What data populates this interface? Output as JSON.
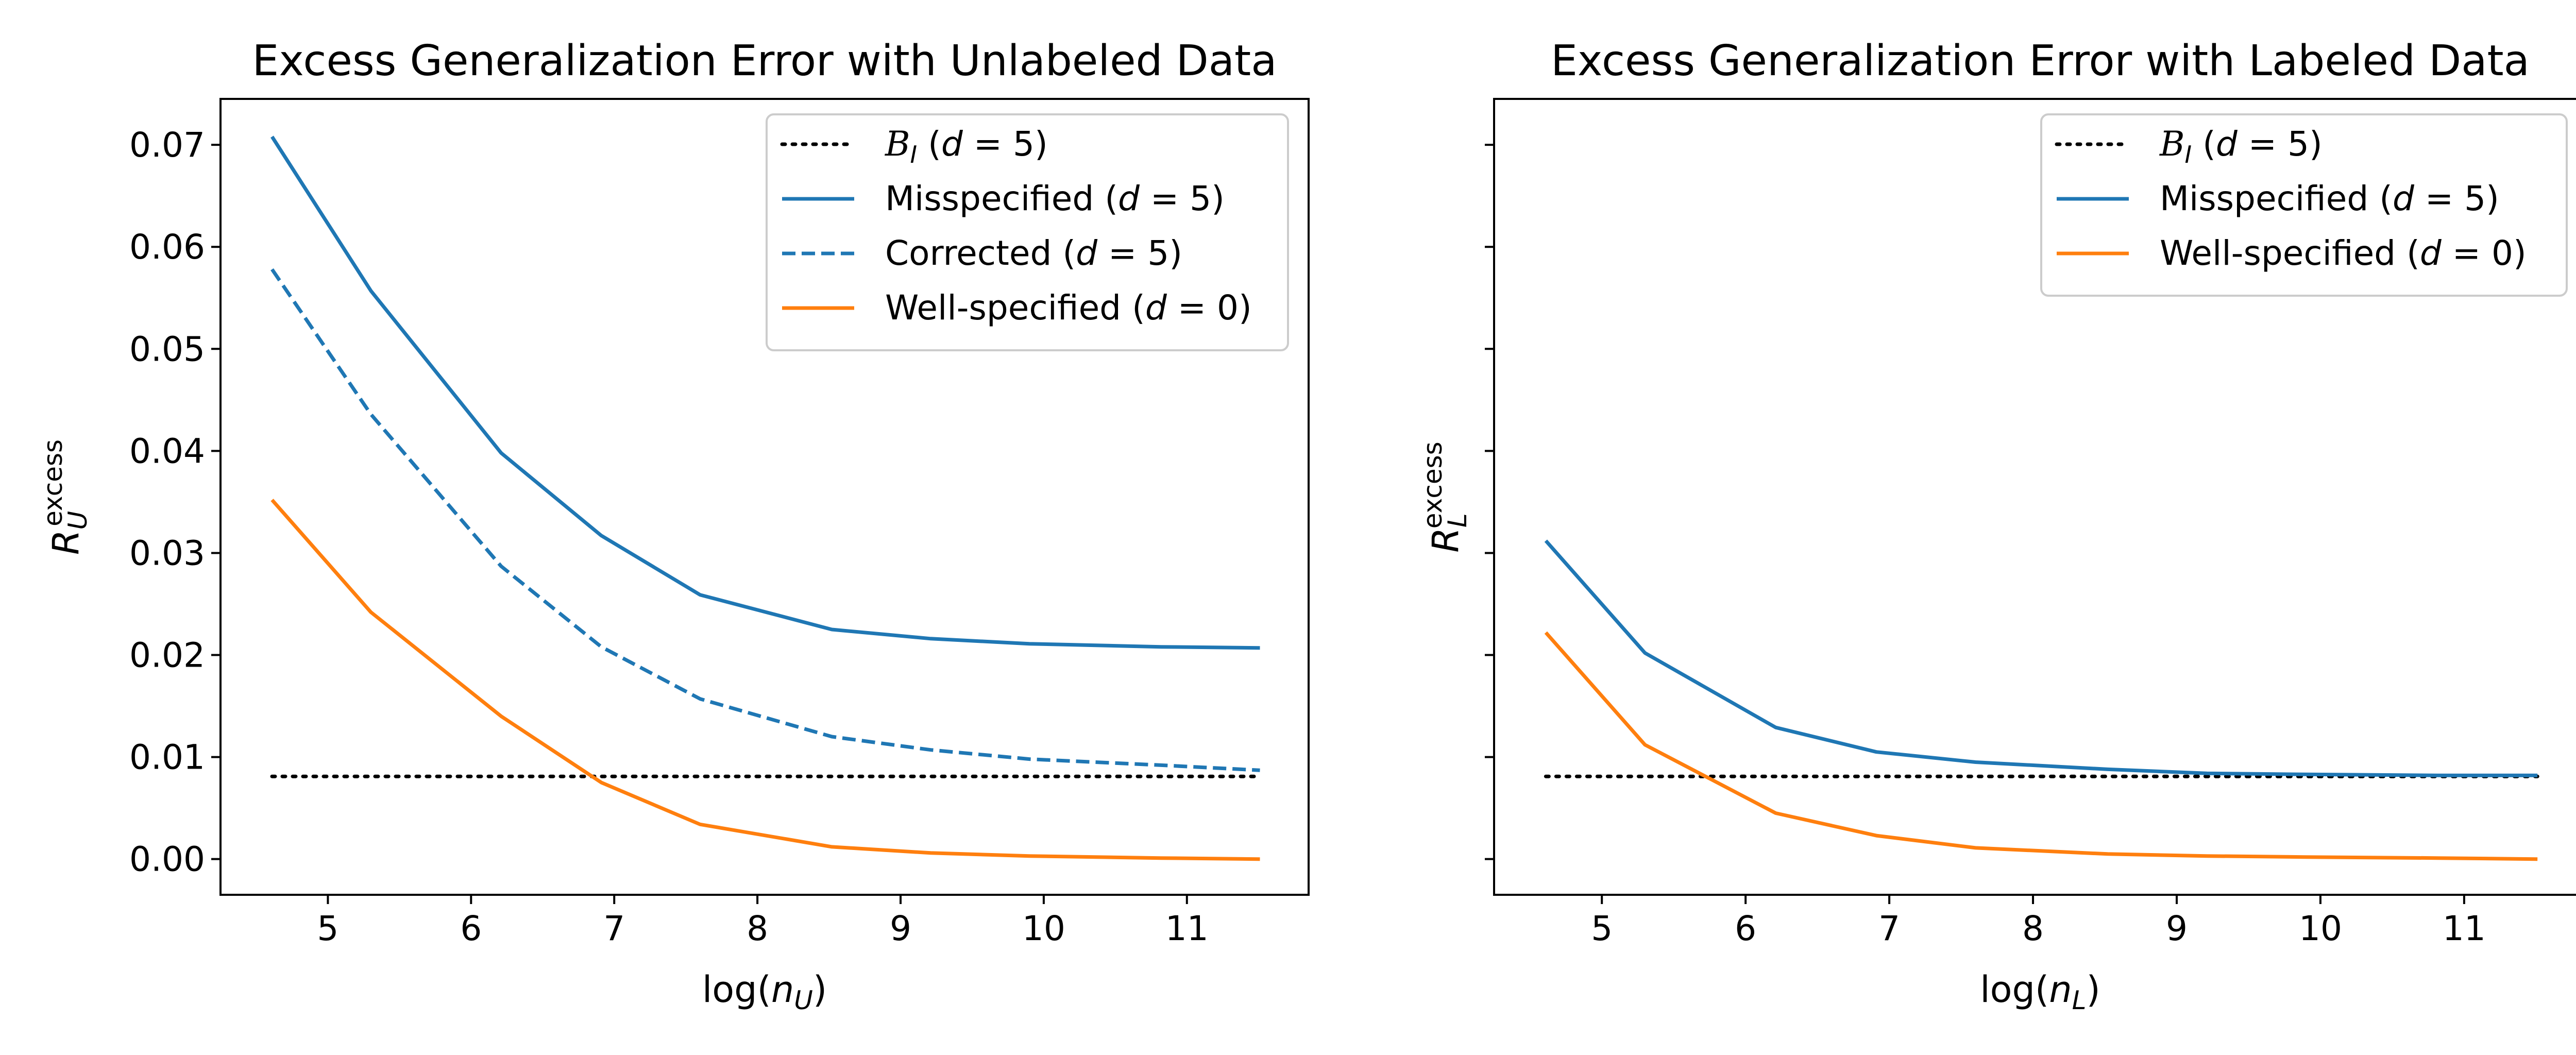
{
  "chart_data": [
    {
      "type": "line",
      "title": "Excess Generalization Error with Unlabeled Data",
      "xlabel": "log(n_U)",
      "ylabel": "R_U^excess",
      "xlim": [
        4.25,
        11.85
      ],
      "ylim": [
        -0.0035,
        0.0745
      ],
      "xticks": [
        "5",
        "6",
        "7",
        "8",
        "9",
        "10",
        "11"
      ],
      "yticks": [
        "0.00",
        "0.01",
        "0.02",
        "0.03",
        "0.04",
        "0.05",
        "0.06",
        "0.07"
      ],
      "grid": false,
      "legend_position": "top-right",
      "x": [
        4.61,
        5.3,
        6.21,
        6.91,
        7.6,
        8.52,
        9.21,
        9.9,
        10.82,
        11.51
      ],
      "series": [
        {
          "name": "B_I (d=5)",
          "color": "#000000",
          "style": "dotted",
          "values": [
            0.0081,
            0.0081,
            0.0081,
            0.0081,
            0.0081,
            0.0081,
            0.0081,
            0.0081,
            0.0081,
            0.0081
          ]
        },
        {
          "name": "Misspecified (d=5)",
          "color": "#1f77b4",
          "style": "solid",
          "values": [
            0.0708,
            0.0557,
            0.0398,
            0.0317,
            0.0259,
            0.0225,
            0.0216,
            0.0211,
            0.0208,
            0.0207
          ]
        },
        {
          "name": "Corrected (d=5)",
          "color": "#1f77b4",
          "style": "dashed",
          "values": [
            0.0578,
            0.0436,
            0.0287,
            0.0208,
            0.0157,
            0.012,
            0.0107,
            0.0098,
            0.0092,
            0.0087
          ]
        },
        {
          "name": "Well-specified (d=0)",
          "color": "#ff7f0e",
          "style": "solid",
          "values": [
            0.0352,
            0.0242,
            0.014,
            0.0075,
            0.0034,
            0.0012,
            0.0006,
            0.0003,
            0.0001,
            0.0
          ]
        }
      ]
    },
    {
      "type": "line",
      "title": "Excess Generalization Error with Labeled Data",
      "xlabel": "log(n_L)",
      "ylabel": "R_L^excess",
      "xlim": [
        4.25,
        11.85
      ],
      "ylim": [
        -0.0035,
        0.0745
      ],
      "xticks": [
        "5",
        "6",
        "7",
        "8",
        "9",
        "10",
        "11"
      ],
      "yticks": [],
      "grid": false,
      "legend_position": "top-right",
      "x": [
        4.61,
        5.3,
        6.21,
        6.91,
        7.6,
        8.52,
        9.21,
        9.9,
        10.82,
        11.51
      ],
      "series": [
        {
          "name": "B_I (d=5)",
          "color": "#000000",
          "style": "dotted",
          "values": [
            0.0081,
            0.0081,
            0.0081,
            0.0081,
            0.0081,
            0.0081,
            0.0081,
            0.0081,
            0.0081,
            0.0081
          ]
        },
        {
          "name": "Misspecified (d=5)",
          "color": "#1f77b4",
          "style": "solid",
          "values": [
            0.0312,
            0.0202,
            0.0129,
            0.0105,
            0.0095,
            0.0088,
            0.0084,
            0.0083,
            0.0082,
            0.0082
          ]
        },
        {
          "name": "Well-specified (d=0)",
          "color": "#ff7f0e",
          "style": "solid",
          "values": [
            0.0222,
            0.0112,
            0.0045,
            0.0023,
            0.0011,
            0.0005,
            0.0003,
            0.0002,
            0.0001,
            0.0
          ]
        }
      ]
    }
  ]
}
